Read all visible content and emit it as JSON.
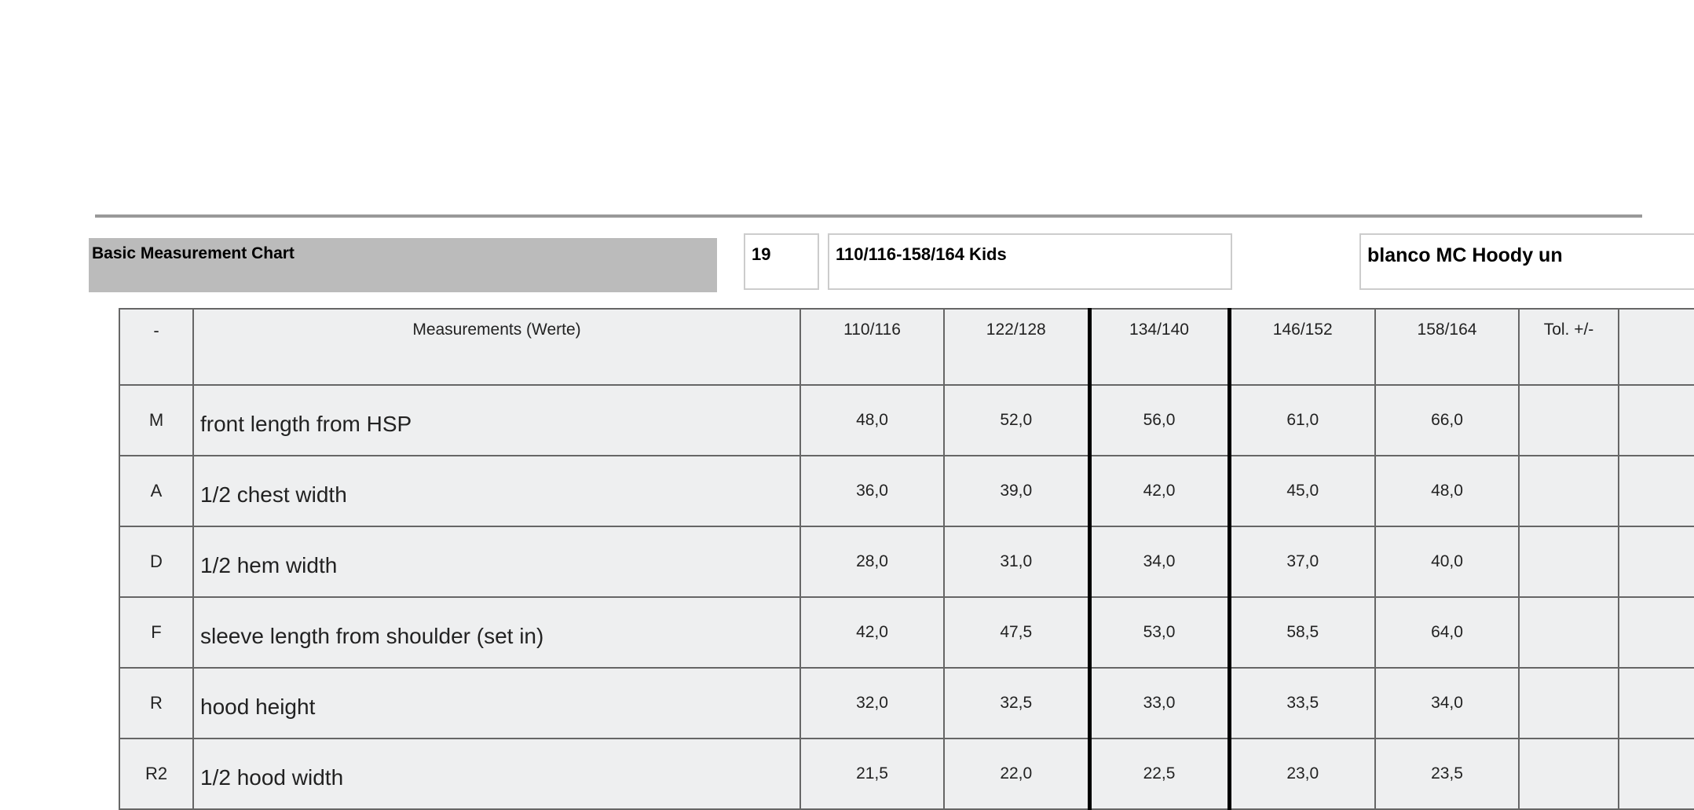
{
  "header": {
    "title": "Basic Measurement Chart",
    "number": "19",
    "size_range": "110/116-158/164 Kids",
    "product": "blanco MC Hoody un"
  },
  "table": {
    "columns": [
      "-",
      "Measurements (Werte)",
      "110/116",
      "122/128",
      "134/140",
      "146/152",
      "158/164",
      "Tol. +/-"
    ],
    "rows": [
      [
        "M",
        "front length from HSP",
        "48,0",
        "52,0",
        "56,0",
        "61,0",
        "66,0"
      ],
      [
        "A",
        "1/2 chest width",
        "36,0",
        "39,0",
        "42,0",
        "45,0",
        "48,0"
      ],
      [
        "D",
        "1/2 hem width",
        "28,0",
        "31,0",
        "34,0",
        "37,0",
        "40,0"
      ],
      [
        "F",
        "sleeve length from shoulder (set in)",
        "42,0",
        "47,5",
        "53,0",
        "58,5",
        "64,0"
      ],
      [
        "R",
        "hood height",
        "32,0",
        "32,5",
        "33,0",
        "33,5",
        "34,0"
      ],
      [
        "R2",
        "1/2 hood width",
        "21,5",
        "22,0",
        "22,5",
        "23,0",
        "23,5"
      ]
    ]
  }
}
